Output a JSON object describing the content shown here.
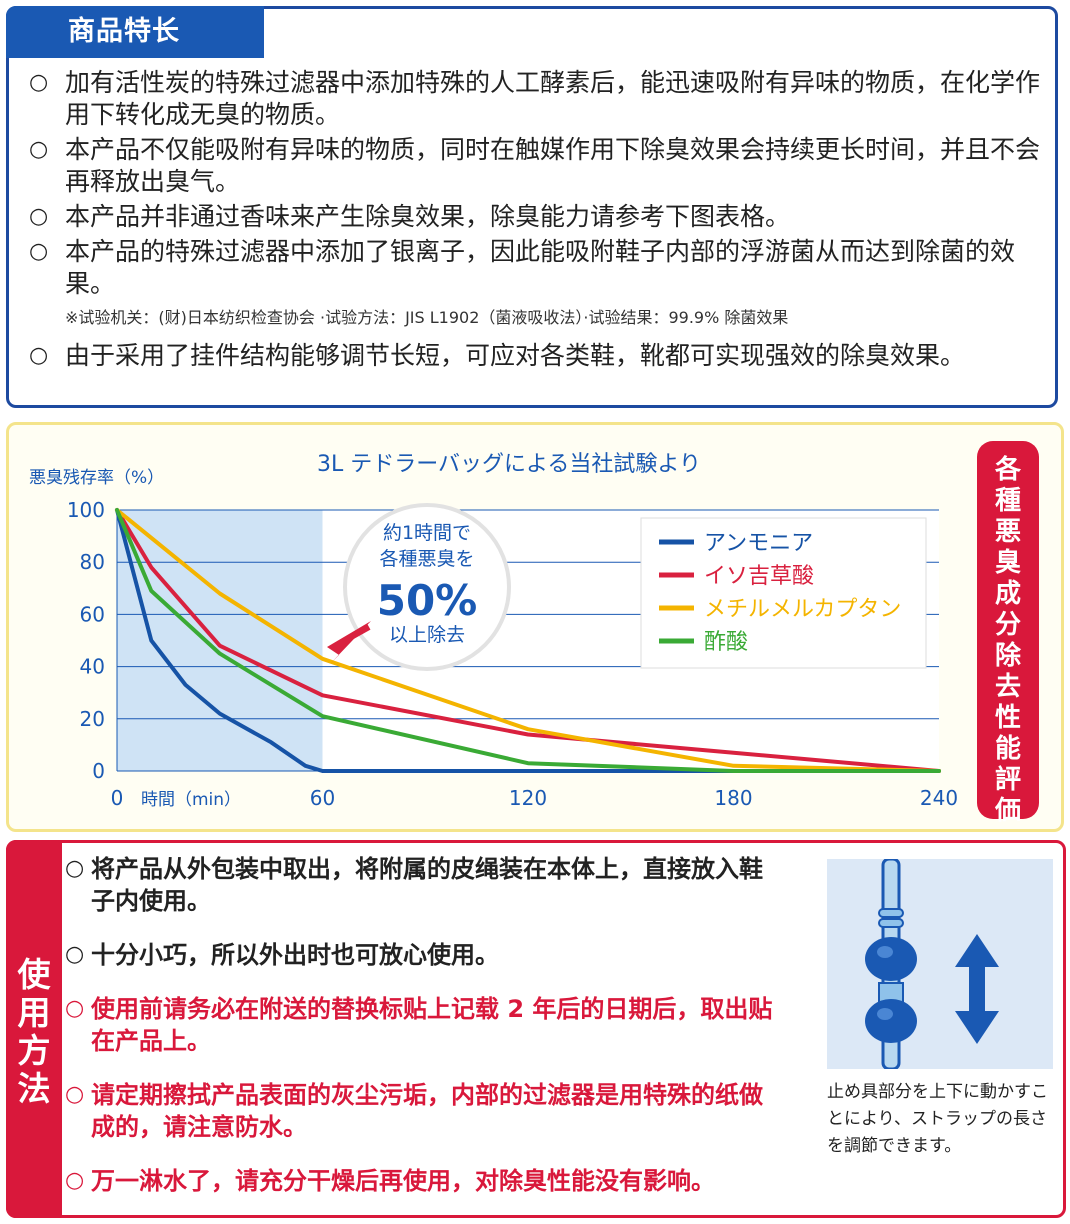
{
  "features": {
    "tab": "商品特长",
    "bullet": "○",
    "items": [
      {
        "text": "加有活性炭的特殊过滤器中添加特殊的人工酵素后，能迅速吸附有异味的物质，在化学作用下转化成无臭的物质。"
      },
      {
        "text": "本产品不仅能吸附有异味的物质，同时在触媒作用下除臭效果会持续更长时间，并且不会再释放出臭气。"
      },
      {
        "text": "本产品并非通过香味来产生除臭效果，除臭能力请参考下图表格。"
      },
      {
        "text": "本产品的特殊过滤器中添加了银离子，因此能吸附鞋子内部的浮游菌从而达到除菌的效果。"
      }
    ],
    "note": "※试验机关：(财)日本纺织检查协会 ·试验方法：JIS L1902（菌液吸收法）·试验结果：99.9% 除菌效果",
    "last_item": "由于采用了挂件结构能够调节长短，可应对各类鞋，靴都可实现强效的除臭效果。"
  },
  "chart_data": {
    "type": "line",
    "title": "3L テドラーバッグによる当社試験より",
    "ylabel": "悪臭残存率（%）",
    "xlabel": "時間（min）",
    "x_ticks": [
      "0",
      "60",
      "120",
      "180",
      "240"
    ],
    "y_ticks": [
      "100",
      "80",
      "60",
      "40",
      "20",
      "0"
    ],
    "xlim": [
      0,
      240
    ],
    "ylim": [
      0,
      100
    ],
    "grid": true,
    "legend_position": "top-right",
    "highlight_range": [
      0,
      60
    ],
    "highlight_color": "#cfe3f5",
    "callout": {
      "line1": "約1時間で",
      "line2": "各種悪臭を",
      "big": "50%",
      "line3": "以上除去"
    },
    "series": [
      {
        "name": "アンモニア",
        "color": "#1653a6",
        "points": [
          [
            0,
            100
          ],
          [
            5,
            75
          ],
          [
            10,
            50
          ],
          [
            20,
            33
          ],
          [
            30,
            22
          ],
          [
            45,
            11
          ],
          [
            55,
            2
          ],
          [
            60,
            0
          ],
          [
            120,
            0
          ],
          [
            180,
            0
          ],
          [
            240,
            0
          ]
        ]
      },
      {
        "name": "イソ吉草酸",
        "color": "#d9213f",
        "points": [
          [
            0,
            100
          ],
          [
            10,
            78
          ],
          [
            30,
            48
          ],
          [
            60,
            29
          ],
          [
            120,
            14
          ],
          [
            180,
            7
          ],
          [
            240,
            0
          ]
        ]
      },
      {
        "name": "メチルメルカプタン",
        "color": "#f4b400",
        "points": [
          [
            0,
            100
          ],
          [
            30,
            68
          ],
          [
            60,
            43
          ],
          [
            120,
            16
          ],
          [
            180,
            2
          ],
          [
            240,
            0
          ]
        ]
      },
      {
        "name": "酢酸",
        "color": "#3aaa35",
        "points": [
          [
            0,
            100
          ],
          [
            10,
            69
          ],
          [
            30,
            45
          ],
          [
            60,
            21
          ],
          [
            120,
            3
          ],
          [
            180,
            0
          ],
          [
            240,
            0
          ]
        ]
      }
    ]
  },
  "side_badge": [
    "各",
    "種",
    "悪",
    "臭",
    "成",
    "分",
    "除",
    "去",
    "性",
    "能",
    "評",
    "価"
  ],
  "usage": {
    "tab": [
      "使",
      "用",
      "方",
      "法"
    ],
    "bullet": "○",
    "items": [
      {
        "text": "将产品从外包装中取出，将附属的皮绳装在本体上，直接放入鞋子内使用。",
        "red": false
      },
      {
        "text": "十分小巧，所以外出时也可放心使用。",
        "red": false
      },
      {
        "text": "使用前请务必在附送的替换标贴上记载 2 年后的日期后，取出贴在产品上。",
        "red": true
      },
      {
        "text": "请定期擦拭产品表面的灰尘污垢，内部的过滤器是用特殊的纸做成的，请注意防水。",
        "red": true
      },
      {
        "text": "万一淋水了，请充分干燥后再使用，对除臭性能没有影响。",
        "red": true
      }
    ],
    "caption": "止め具部分を上下に動かすことにより、ストラップの長さを調節できます。"
  }
}
